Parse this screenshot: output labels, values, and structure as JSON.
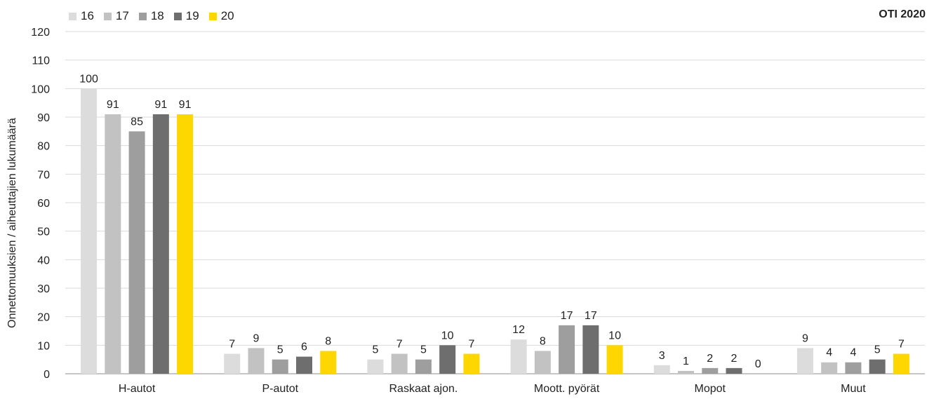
{
  "brand": "OTI 2020",
  "chart_data": {
    "type": "bar",
    "categories": [
      "H-autot",
      "P-autot",
      "Raskaat ajon.",
      "Moott. pyörät",
      "Mopot",
      "Muut"
    ],
    "series": [
      {
        "name": "16",
        "color": "#dcdcdc",
        "values": [
          100,
          7,
          5,
          12,
          3,
          9
        ]
      },
      {
        "name": "17",
        "color": "#c2c2c2",
        "values": [
          91,
          9,
          7,
          8,
          1,
          4
        ]
      },
      {
        "name": "18",
        "color": "#9e9e9e",
        "values": [
          85,
          5,
          5,
          17,
          2,
          4
        ]
      },
      {
        "name": "19",
        "color": "#6e6e6e",
        "values": [
          91,
          6,
          10,
          17,
          2,
          5
        ]
      },
      {
        "name": "20",
        "color": "#ffd700",
        "values": [
          91,
          8,
          7,
          10,
          0,
          7
        ]
      }
    ],
    "ylabel": "Onnettomuuksien / aiheuttajien lukumäärä",
    "ylim": [
      0,
      120
    ],
    "yticks": [
      0,
      10,
      20,
      30,
      40,
      50,
      60,
      70,
      80,
      90,
      100,
      110,
      120
    ],
    "grid": true,
    "legend_position": "top-left",
    "data_labels": true
  }
}
